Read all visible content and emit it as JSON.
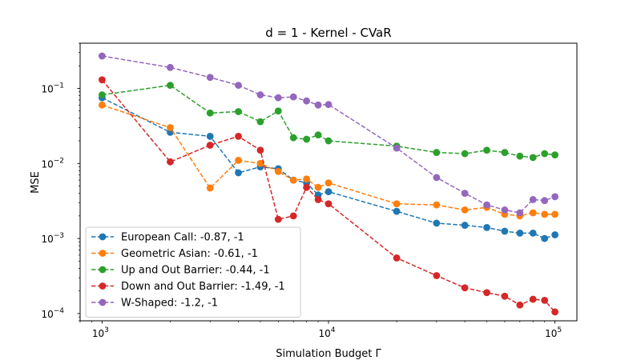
{
  "chart_data": {
    "type": "line",
    "title": "d = 1 - Kernel - CVaR",
    "xlabel": "Simulation Budget Γ",
    "ylabel": "MSE",
    "xscale": "log",
    "yscale": "log",
    "xlim": [
      800,
      125000
    ],
    "ylim": [
      8e-05,
      0.4
    ],
    "xtick_labels": [
      {
        "value": 1000,
        "base": "10",
        "exp": "3"
      },
      {
        "value": 10000,
        "base": "10",
        "exp": "4"
      },
      {
        "value": 100000,
        "base": "10",
        "exp": "5"
      }
    ],
    "ytick_labels": [
      {
        "value": 0.0001,
        "base": "10",
        "exp": "−4"
      },
      {
        "value": 0.001,
        "base": "10",
        "exp": "−3"
      },
      {
        "value": 0.01,
        "base": "10",
        "exp": "−2"
      },
      {
        "value": 0.1,
        "base": "10",
        "exp": "−1"
      }
    ],
    "grid": false,
    "legend_position": "lower-left",
    "x": [
      1000,
      2000,
      3000,
      4000,
      5000,
      6000,
      7000,
      8000,
      9000,
      10000,
      20000,
      30000,
      40000,
      50000,
      60000,
      70000,
      80000,
      90000,
      100000
    ],
    "series": [
      {
        "name": "European Call: -0.87, -1",
        "color": "#1f77b4",
        "values": [
          0.075,
          0.026,
          0.023,
          0.0075,
          0.009,
          0.0085,
          0.006,
          0.0055,
          0.0038,
          0.0042,
          0.0023,
          0.0016,
          0.0015,
          0.0014,
          0.00125,
          0.00118,
          0.00118,
          0.001,
          0.00112
        ]
      },
      {
        "name": "Geometric Asian: -0.61, -1",
        "color": "#ff7f0e",
        "values": [
          0.06,
          0.03,
          0.0047,
          0.011,
          0.01,
          0.0078,
          0.006,
          0.0062,
          0.0048,
          0.0055,
          0.0029,
          0.0028,
          0.0024,
          0.0026,
          0.0021,
          0.002,
          0.0022,
          0.0021,
          0.0021
        ]
      },
      {
        "name": "Up and Out Barrier: -0.44, -1",
        "color": "#2ca02c",
        "values": [
          0.082,
          0.11,
          0.047,
          0.049,
          0.036,
          0.05,
          0.022,
          0.021,
          0.024,
          0.02,
          0.017,
          0.014,
          0.0135,
          0.015,
          0.014,
          0.0125,
          0.012,
          0.0135,
          0.013
        ]
      },
      {
        "name": "Down and Out Barrier: -1.49, -1",
        "color": "#d62728",
        "values": [
          0.13,
          0.0105,
          0.0175,
          0.023,
          0.015,
          0.0018,
          0.002,
          0.0048,
          0.0033,
          0.0029,
          0.00055,
          0.00032,
          0.00022,
          0.00019,
          0.00017,
          0.00013,
          0.000155,
          0.00015,
          0.000105
        ]
      },
      {
        "name": "W-Shaped: -1.2, -1",
        "color": "#9467bd",
        "values": [
          0.27,
          0.19,
          0.14,
          0.11,
          0.082,
          0.075,
          0.077,
          0.068,
          0.06,
          0.061,
          0.016,
          0.0065,
          0.004,
          0.0028,
          0.0024,
          0.0022,
          0.0033,
          0.0032,
          0.0036
        ]
      }
    ]
  }
}
